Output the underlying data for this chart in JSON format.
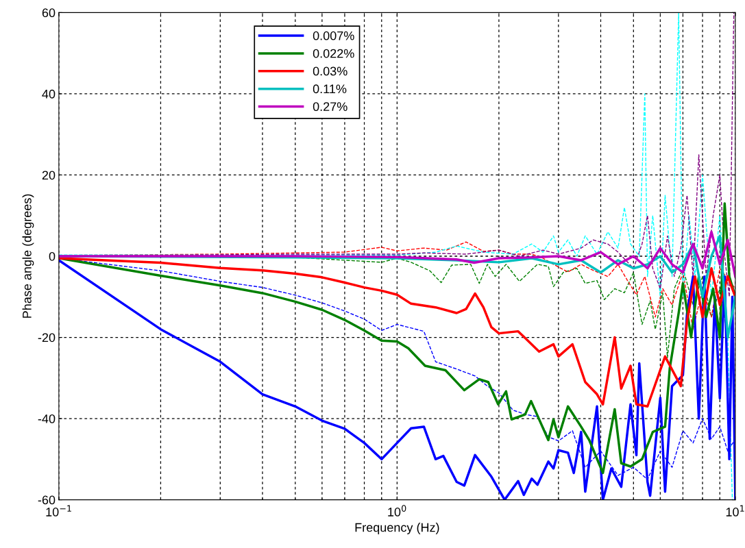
{
  "chart_data": {
    "type": "line",
    "xlabel": "Frequency (Hz)",
    "ylabel": "Phase angle (degrees)",
    "log": "x",
    "xlim": [
      0.1,
      10
    ],
    "xticks": [
      {
        "value": 0.1,
        "label": "10$^{−1}$"
      },
      {
        "value": 1,
        "label": "10$^{0}$"
      },
      {
        "value": 10,
        "label": "10$^{1}$"
      }
    ],
    "ylim": [
      -60,
      60
    ],
    "yticks": [
      -60,
      -40,
      -20,
      0,
      20,
      40,
      60
    ],
    "grid": true,
    "legend": "top left",
    "marker": "none",
    "series": [
      {
        "color": "#0000ff",
        "line_style": "dashed",
        "x": [
          0.1,
          0.2,
          0.3,
          0.4,
          0.5,
          0.6,
          0.7,
          0.8,
          0.9,
          1.0,
          1.2,
          1.3,
          1.5,
          1.7,
          1.85,
          2.0,
          2.2,
          2.4,
          2.6,
          2.8,
          3.0,
          3.3,
          3.6,
          4.0,
          4.5,
          5,
          5.5,
          6,
          6.5,
          7,
          7.5,
          8,
          8.5,
          9,
          9.5,
          10
        ],
        "values": [
          -0.5,
          -3.6,
          -6.2,
          -7.7,
          -9.6,
          -11.5,
          -13.5,
          -15.5,
          -18.3,
          -16.8,
          -18.5,
          -26,
          -27.8,
          -29.5,
          -32,
          -33.7,
          -37.9,
          -39,
          -39.5,
          -44.5,
          -45.5,
          -43,
          -52,
          -48,
          -54,
          -52,
          -55,
          -48,
          -52,
          -43,
          -46,
          -40,
          -45,
          -42,
          -48,
          -45
        ]
      },
      {
        "color": "#008000",
        "line_style": "dashed",
        "x": [
          0.1,
          0.5,
          0.9,
          1.0,
          1.1,
          1.25,
          1.35,
          1.45,
          1.65,
          1.75,
          1.85,
          1.95,
          2.1,
          2.3,
          2.6,
          2.8,
          2.9,
          3.1,
          3.4,
          3.6,
          3.9,
          4.1,
          4.4,
          4.7,
          5,
          5.3,
          5.6,
          5.8,
          6.1,
          6.3,
          6.6,
          7,
          7.5,
          8,
          8.5,
          9,
          9.5,
          10
        ],
        "values": [
          0,
          -0.3,
          -1.5,
          -0.5,
          -1.5,
          -3.6,
          -6.5,
          -2.2,
          -2,
          -6.7,
          -2,
          -5,
          -2,
          -6.2,
          -2,
          -2.5,
          -7.5,
          -4,
          -3,
          -6.7,
          -6,
          -10.7,
          -8,
          -9,
          -4,
          -16.8,
          -11,
          -18,
          -9,
          -25,
          -8,
          -3,
          -12,
          -5,
          -15,
          -8,
          -20,
          -10
        ]
      },
      {
        "color": "#ff0000",
        "line_style": "dashed",
        "x": [
          0.1,
          0.3,
          0.5,
          0.7,
          0.9,
          1.0,
          1.2,
          1.4,
          1.6,
          1.8,
          2.0,
          2.2,
          2.5,
          2.7,
          2.9,
          3.2,
          3.5,
          3.8,
          4.2,
          4.5,
          4.8,
          5.1,
          5.4,
          5.8,
          6.1,
          6.5,
          7,
          7.5,
          8,
          8.5,
          9,
          10
        ],
        "values": [
          0.2,
          0.5,
          0.8,
          1,
          2.2,
          1.3,
          2,
          1.5,
          3.5,
          1.2,
          1.5,
          0.5,
          0.5,
          -0.5,
          -2,
          -3.9,
          -2,
          -3.5,
          -5,
          -2,
          -6,
          -9.5,
          -5,
          -15,
          -8,
          -12,
          -4,
          -18,
          -8,
          -15,
          -3,
          -8
        ]
      },
      {
        "color": "#00ffff",
        "line_style": "dashed",
        "x": [
          0.1,
          0.5,
          1.0,
          1.1,
          1.3,
          1.5,
          1.8,
          2.2,
          2.5,
          2.7,
          2.9,
          3.0,
          3.2,
          3.4,
          3.6,
          3.9,
          4.2,
          4.5,
          4.7,
          4.9,
          5.2,
          5.4,
          5.5,
          5.7,
          6.0,
          6.2,
          6.5,
          6.8,
          7.0,
          7.3,
          7.6,
          8.0,
          8.5,
          9.0,
          9.5,
          9.8
        ],
        "values": [
          0.3,
          0.3,
          0.3,
          0.5,
          1,
          2.5,
          1,
          0.5,
          3,
          1,
          5,
          1,
          4,
          0,
          5,
          0.5,
          6,
          2,
          12,
          3,
          0,
          40,
          -5,
          10,
          -10,
          15,
          -5,
          60,
          -10,
          10,
          -5,
          20,
          -10,
          10,
          -20,
          -60
        ]
      },
      {
        "color": "#800080",
        "line_style": "dashed",
        "x": [
          0.1,
          0.5,
          1.0,
          1.2,
          1.6,
          2.0,
          2.3,
          2.7,
          3.0,
          3.5,
          3.8,
          4.2,
          4.5,
          5,
          5.3,
          5.5,
          5.7,
          6.0,
          6.3,
          6.6,
          6.9,
          7.2,
          7.5,
          7.8,
          8.2,
          8.6,
          9.0,
          9.3,
          9.6,
          9.9,
          10
        ],
        "values": [
          0,
          0.5,
          0.5,
          0.8,
          0.5,
          1.5,
          0,
          1.5,
          0.5,
          2,
          4,
          3,
          1,
          -3,
          3,
          10,
          -3,
          -8,
          5,
          -5,
          2,
          15,
          -5,
          25,
          -5,
          10,
          20,
          0,
          -10,
          60,
          60
        ]
      },
      {
        "name": "0.007%",
        "color": "#0000ff",
        "line_style": "solid",
        "x": [
          0.1,
          0.2,
          0.3,
          0.4,
          0.5,
          0.6,
          0.7,
          0.8,
          0.9,
          1.0,
          1.1,
          1.2,
          1.3,
          1.37,
          1.5,
          1.58,
          1.7,
          1.9,
          2.08,
          2.28,
          2.37,
          2.5,
          2.6,
          2.8,
          2.9,
          3.0,
          3.2,
          3.33,
          3.5,
          3.6,
          3.9,
          4.06,
          4.3,
          4.6,
          4.9,
          5.1,
          5.2,
          5.5,
          5.6,
          6.0,
          6.2,
          6.5,
          7.0,
          7.2,
          7.5,
          7.8,
          8.1,
          8.4,
          8.7,
          9.0,
          9.3,
          9.6,
          9.8,
          10
        ],
        "values": [
          -1,
          -18,
          -26,
          -34,
          -37,
          -40.5,
          -42.5,
          -46,
          -50,
          -46,
          -42.4,
          -42,
          -50,
          -49.2,
          -55.6,
          -56.5,
          -49,
          -54.3,
          -60,
          -55.4,
          -58.8,
          -54.8,
          -56.3,
          -50.6,
          -52.3,
          -47.8,
          -48.4,
          -53.4,
          -43.3,
          -58,
          -37,
          -60,
          -52.3,
          -56.8,
          -36.5,
          -49,
          -26.4,
          -55.6,
          -59,
          -34.9,
          -58,
          -32,
          -29.3,
          -14,
          -5,
          -40,
          -5,
          -45,
          -10,
          -35,
          -5,
          -50,
          -10,
          -60
        ]
      },
      {
        "name": "0.022%",
        "color": "#008000",
        "line_style": "solid",
        "x": [
          0.1,
          0.2,
          0.3,
          0.4,
          0.5,
          0.6,
          0.7,
          0.8,
          0.9,
          1.0,
          1.08,
          1.21,
          1.39,
          1.58,
          1.75,
          1.86,
          1.99,
          2.1,
          2.18,
          2.39,
          2.49,
          2.8,
          2.9,
          3.0,
          3.2,
          3.5,
          3.7,
          4.06,
          4.4,
          4.6,
          4.9,
          5.3,
          5.7,
          6.2,
          6.4,
          6.8,
          7.0,
          7.4,
          7.8,
          8.2,
          8.6,
          9.0,
          9.3,
          9.6,
          10
        ],
        "values": [
          -0.5,
          -4.8,
          -7.2,
          -9.1,
          -11.2,
          -13.2,
          -15.7,
          -18.3,
          -20.8,
          -21,
          -22.7,
          -27,
          -28.1,
          -33,
          -30.3,
          -31,
          -36.5,
          -33.3,
          -40.2,
          -39,
          -35.7,
          -45.3,
          -40.2,
          -44.6,
          -37,
          -42,
          -45.3,
          -53.4,
          -37.7,
          -51,
          -51.8,
          -50,
          -43.3,
          -42,
          -27.6,
          -14,
          -6.7,
          -20,
          -5,
          -15,
          -8,
          -20,
          13,
          -5,
          -10
        ]
      },
      {
        "name": "0.03%",
        "color": "#ff0000",
        "line_style": "solid",
        "x": [
          0.1,
          0.2,
          0.3,
          0.4,
          0.5,
          0.6,
          0.7,
          0.8,
          0.9,
          1.0,
          1.1,
          1.3,
          1.5,
          1.6,
          1.7,
          1.8,
          1.9,
          2.0,
          2.28,
          2.63,
          2.9,
          3.0,
          3.3,
          3.6,
          3.9,
          4.06,
          4.4,
          4.6,
          4.9,
          5.1,
          5.5,
          6.2,
          6.9,
          7.2,
          7.6,
          8.0,
          8.5,
          9.0,
          9.5,
          10
        ],
        "values": [
          -0.5,
          -1.6,
          -2.9,
          -3.5,
          -4.3,
          -5.2,
          -6.5,
          -7.7,
          -8.5,
          -9.5,
          -11.7,
          -12.6,
          -14,
          -13,
          -9.2,
          -12.6,
          -17.5,
          -19,
          -18.5,
          -23.5,
          -21.7,
          -24.7,
          -21.7,
          -31,
          -34,
          -36.5,
          -20,
          -32.6,
          -27,
          -36.5,
          -37,
          -24.7,
          -32,
          -16,
          -5,
          -15,
          -3,
          -12,
          -5,
          -10
        ]
      },
      {
        "name": "0.11%",
        "color": "#00bfbf",
        "line_style": "solid",
        "x": [
          0.1,
          0.5,
          1.0,
          1.5,
          2,
          2.5,
          3,
          3.5,
          4,
          4.5,
          5,
          5.5,
          6,
          6.5,
          7,
          7.5,
          8,
          8.5,
          9,
          9.5,
          10
        ],
        "values": [
          0,
          -0.3,
          -0.5,
          -1,
          -1.5,
          -0.5,
          -2,
          -1,
          -4,
          -1,
          -3,
          -2,
          0,
          -4,
          -2,
          3,
          -10,
          0,
          5,
          -20,
          -10
        ]
      },
      {
        "name": "0.27%",
        "color": "#bf00bf",
        "line_style": "solid",
        "x": [
          0.1,
          0.5,
          1.0,
          1.5,
          1.69,
          2,
          2.5,
          3,
          3.5,
          4,
          4.5,
          5,
          5.5,
          6,
          6.5,
          7,
          7.5,
          8,
          8.5,
          9,
          9.5,
          10
        ],
        "values": [
          0,
          0,
          -0.2,
          -0.8,
          -1.6,
          -0.5,
          -0.3,
          0,
          -1,
          1,
          -2,
          0,
          -3,
          2,
          -2,
          -4,
          3,
          -3,
          6,
          -2,
          4,
          -5
        ]
      }
    ]
  }
}
